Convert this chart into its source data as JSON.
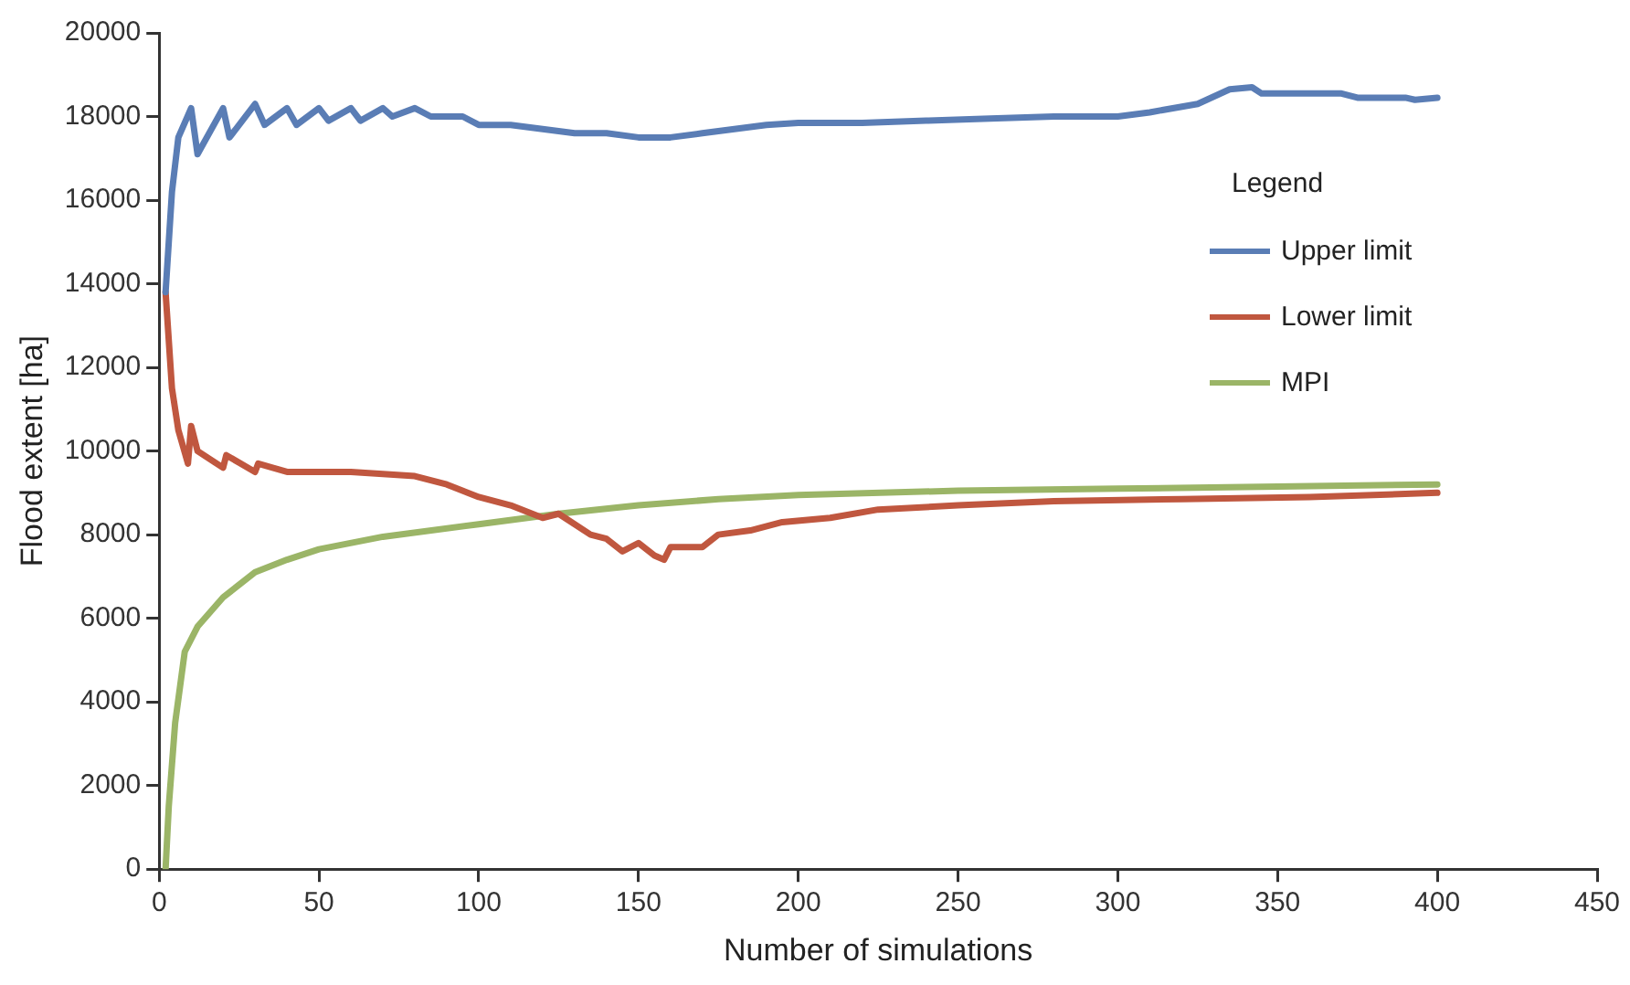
{
  "chart_data": {
    "type": "line",
    "xlabel": "Number of simulations",
    "ylabel": "Flood extent [ha]",
    "legend_title": "Legend",
    "legend": "right",
    "grid": false,
    "marker": "none",
    "line_style": "solid",
    "xlim": [
      0,
      450
    ],
    "xticks": [
      0,
      50,
      100,
      150,
      200,
      250,
      300,
      350,
      400,
      450
    ],
    "ylim": [
      0,
      20000
    ],
    "yticks": [
      0,
      2000,
      4000,
      6000,
      8000,
      10000,
      12000,
      14000,
      16000,
      18000,
      20000
    ],
    "series": [
      {
        "name": "Upper limit",
        "color": "#5a7db5",
        "x": [
          2,
          4,
          6,
          10,
          12,
          20,
          22,
          30,
          33,
          40,
          43,
          50,
          53,
          60,
          63,
          70,
          73,
          80,
          85,
          95,
          100,
          110,
          120,
          130,
          140,
          150,
          160,
          170,
          180,
          190,
          200,
          220,
          240,
          260,
          280,
          300,
          310,
          325,
          335,
          342,
          345,
          370,
          375,
          390,
          393,
          400
        ],
        "values": [
          13800,
          16200,
          17500,
          18200,
          17100,
          18200,
          17500,
          18300,
          17800,
          18200,
          17800,
          18200,
          17900,
          18200,
          17900,
          18200,
          18000,
          18200,
          18000,
          18000,
          17800,
          17800,
          17700,
          17600,
          17600,
          17500,
          17500,
          17600,
          17700,
          17800,
          17850,
          17850,
          17900,
          17950,
          18000,
          18000,
          18100,
          18300,
          18650,
          18700,
          18550,
          18550,
          18450,
          18450,
          18400,
          18450
        ]
      },
      {
        "name": "Lower limit",
        "color": "#c0573f",
        "x": [
          2,
          4,
          6,
          9,
          10,
          12,
          20,
          21,
          30,
          31,
          40,
          60,
          80,
          90,
          100,
          110,
          120,
          125,
          135,
          140,
          145,
          150,
          155,
          158,
          160,
          170,
          175,
          185,
          195,
          210,
          225,
          250,
          280,
          320,
          360,
          400
        ],
        "values": [
          13800,
          11500,
          10500,
          9700,
          10600,
          10000,
          9600,
          9900,
          9500,
          9700,
          9500,
          9500,
          9400,
          9200,
          8900,
          8700,
          8400,
          8500,
          8000,
          7900,
          7600,
          7800,
          7500,
          7400,
          7700,
          7700,
          8000,
          8100,
          8300,
          8400,
          8600,
          8700,
          8800,
          8850,
          8900,
          9000
        ]
      },
      {
        "name": "MPI",
        "color": "#9bb567",
        "x": [
          2,
          3,
          5,
          8,
          12,
          20,
          30,
          40,
          50,
          70,
          100,
          125,
          150,
          175,
          200,
          250,
          300,
          350,
          400
        ],
        "values": [
          0,
          1500,
          3500,
          5200,
          5800,
          6500,
          7100,
          7400,
          7650,
          7950,
          8250,
          8500,
          8700,
          8850,
          8950,
          9050,
          9100,
          9150,
          9200
        ]
      }
    ]
  }
}
